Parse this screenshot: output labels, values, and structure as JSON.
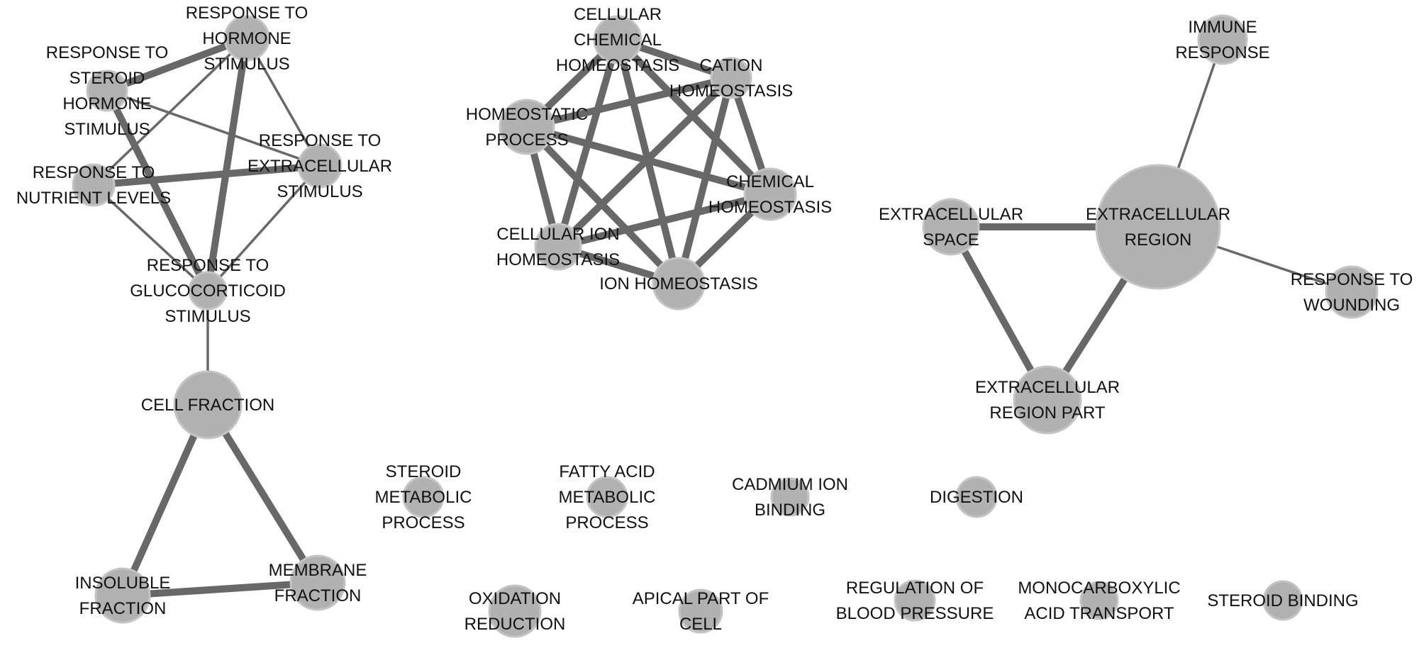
{
  "network": {
    "colors": {
      "node_fill": "#b1b1b1",
      "node_border": "#c4c4c4",
      "edge": "#686868",
      "text": "#111111"
    },
    "nodes": [
      {
        "id": "resp_hormone",
        "label": [
          "RESPONSE TO",
          "HORMONE",
          "STIMULUS"
        ]
      },
      {
        "id": "resp_steroid",
        "label": [
          "RESPONSE TO",
          "STEROID",
          "HORMONE",
          "STIMULUS"
        ]
      },
      {
        "id": "resp_extracell",
        "label": [
          "RESPONSE TO",
          "EXTRACELLULAR",
          "STIMULUS"
        ]
      },
      {
        "id": "resp_nutrient",
        "label": [
          "RESPONSE TO",
          "NUTRIENT LEVELS"
        ]
      },
      {
        "id": "resp_gluco",
        "label": [
          "RESPONSE TO",
          "GLUCOCORTICOID",
          "STIMULUS"
        ]
      },
      {
        "id": "cell_fraction",
        "label": [
          "CELL FRACTION"
        ]
      },
      {
        "id": "insoluble",
        "label": [
          "INSOLUBLE",
          "FRACTION"
        ]
      },
      {
        "id": "membrane",
        "label": [
          "MEMBRANE",
          "FRACTION"
        ]
      },
      {
        "id": "cell_chem_homeo",
        "label": [
          "CELLULAR",
          "CHEMICAL",
          "HOMEOSTASIS"
        ]
      },
      {
        "id": "cation_homeo",
        "label": [
          "CATION",
          "HOMEOSTASIS"
        ]
      },
      {
        "id": "homeostatic",
        "label": [
          "HOMEOSTATIC",
          "PROCESS"
        ]
      },
      {
        "id": "chem_homeo",
        "label": [
          "CHEMICAL",
          "HOMEOSTASIS"
        ]
      },
      {
        "id": "cell_ion_homeo",
        "label": [
          "CELLULAR ION",
          "HOMEOSTASIS"
        ]
      },
      {
        "id": "ion_homeo",
        "label": [
          "ION HOMEOSTASIS"
        ]
      },
      {
        "id": "immune",
        "label": [
          "IMMUNE",
          "RESPONSE"
        ]
      },
      {
        "id": "ext_region",
        "label": [
          "EXTRACELLULAR",
          "REGION"
        ]
      },
      {
        "id": "ext_space",
        "label": [
          "EXTRACELLULAR",
          "SPACE"
        ]
      },
      {
        "id": "wounding",
        "label": [
          "RESPONSE TO",
          "WOUNDING"
        ]
      },
      {
        "id": "ext_region_part",
        "label": [
          "EXTRACELLULAR",
          "REGION PART"
        ]
      },
      {
        "id": "steroid_metab",
        "label": [
          "STEROID",
          "METABOLIC",
          "PROCESS"
        ]
      },
      {
        "id": "fatty_acid",
        "label": [
          "FATTY ACID",
          "METABOLIC",
          "PROCESS"
        ]
      },
      {
        "id": "cadmium",
        "label": [
          "CADMIUM ION",
          "BINDING"
        ]
      },
      {
        "id": "digestion",
        "label": [
          "DIGESTION"
        ]
      },
      {
        "id": "oxidation",
        "label": [
          "OXIDATION",
          "REDUCTION"
        ]
      },
      {
        "id": "apical",
        "label": [
          "APICAL PART OF",
          "CELL"
        ]
      },
      {
        "id": "reg_bp",
        "label": [
          "REGULATION OF",
          "BLOOD PRESSURE"
        ]
      },
      {
        "id": "monocarb",
        "label": [
          "MONOCARBOXYLIC",
          "ACID TRANSPORT"
        ]
      },
      {
        "id": "steroid_binding",
        "label": [
          "STEROID BINDING"
        ]
      }
    ],
    "edges": [
      {
        "source": "resp_hormone",
        "target": "resp_steroid",
        "weight": "strong"
      },
      {
        "source": "resp_hormone",
        "target": "resp_gluco",
        "weight": "strong"
      },
      {
        "source": "resp_hormone",
        "target": "resp_extracell",
        "weight": "weak"
      },
      {
        "source": "resp_hormone",
        "target": "resp_nutrient",
        "weight": "weak"
      },
      {
        "source": "resp_steroid",
        "target": "resp_extracell",
        "weight": "weak"
      },
      {
        "source": "resp_steroid",
        "target": "resp_gluco",
        "weight": "strong"
      },
      {
        "source": "resp_nutrient",
        "target": "resp_extracell",
        "weight": "strong"
      },
      {
        "source": "resp_nutrient",
        "target": "resp_gluco",
        "weight": "weak"
      },
      {
        "source": "resp_extracell",
        "target": "resp_gluco",
        "weight": "weak"
      },
      {
        "source": "resp_gluco",
        "target": "cell_fraction",
        "weight": "weak"
      },
      {
        "source": "cell_fraction",
        "target": "insoluble",
        "weight": "strong"
      },
      {
        "source": "cell_fraction",
        "target": "membrane",
        "weight": "strong"
      },
      {
        "source": "insoluble",
        "target": "membrane",
        "weight": "strong"
      },
      {
        "source": "cell_chem_homeo",
        "target": "cation_homeo",
        "weight": "strong"
      },
      {
        "source": "cell_chem_homeo",
        "target": "homeostatic",
        "weight": "strong"
      },
      {
        "source": "cell_chem_homeo",
        "target": "chem_homeo",
        "weight": "strong"
      },
      {
        "source": "cell_chem_homeo",
        "target": "cell_ion_homeo",
        "weight": "strong"
      },
      {
        "source": "cell_chem_homeo",
        "target": "ion_homeo",
        "weight": "strong"
      },
      {
        "source": "cation_homeo",
        "target": "homeostatic",
        "weight": "strong"
      },
      {
        "source": "cation_homeo",
        "target": "chem_homeo",
        "weight": "strong"
      },
      {
        "source": "cation_homeo",
        "target": "cell_ion_homeo",
        "weight": "strong"
      },
      {
        "source": "cation_homeo",
        "target": "ion_homeo",
        "weight": "strong"
      },
      {
        "source": "homeostatic",
        "target": "chem_homeo",
        "weight": "strong"
      },
      {
        "source": "homeostatic",
        "target": "cell_ion_homeo",
        "weight": "strong"
      },
      {
        "source": "homeostatic",
        "target": "ion_homeo",
        "weight": "strong"
      },
      {
        "source": "chem_homeo",
        "target": "cell_ion_homeo",
        "weight": "strong"
      },
      {
        "source": "chem_homeo",
        "target": "ion_homeo",
        "weight": "strong"
      },
      {
        "source": "cell_ion_homeo",
        "target": "ion_homeo",
        "weight": "strong"
      },
      {
        "source": "ext_space",
        "target": "ext_region",
        "weight": "strong"
      },
      {
        "source": "ext_space",
        "target": "ext_region_part",
        "weight": "strong"
      },
      {
        "source": "ext_region",
        "target": "ext_region_part",
        "weight": "strong"
      },
      {
        "source": "ext_region",
        "target": "immune",
        "weight": "weak"
      },
      {
        "source": "ext_region",
        "target": "wounding",
        "weight": "weak"
      }
    ]
  }
}
